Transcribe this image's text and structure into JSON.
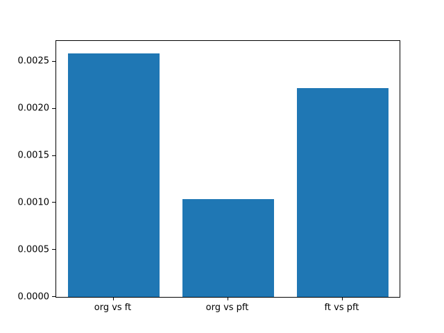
{
  "chart_data": {
    "type": "bar",
    "title": "",
    "xlabel": "",
    "ylabel": "",
    "categories": [
      "org vs ft",
      "org vs pft",
      "ft vs pft"
    ],
    "values": [
      0.00259,
      0.00104,
      0.00222
    ],
    "ylim": [
      0,
      0.00272
    ],
    "yticks": [
      0.0,
      0.0005,
      0.001,
      0.0015,
      0.002,
      0.0025
    ],
    "ytick_labels": [
      "0.0000",
      "0.0005",
      "0.0010",
      "0.0015",
      "0.0020",
      "0.0025"
    ],
    "bar_color": "#1f77b4",
    "background_color": "#ffffff",
    "grid": false,
    "legend": null
  }
}
